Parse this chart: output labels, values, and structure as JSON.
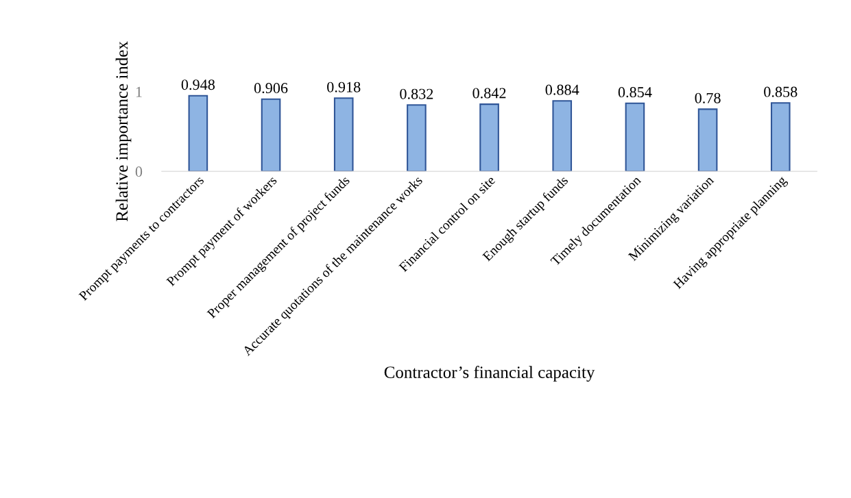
{
  "chart_data": {
    "type": "bar",
    "xlabel": "Contractor’s financial capacity",
    "ylabel": "Relative importance index",
    "categories": [
      "Prompt payments to contractors",
      "Prompt payment of workers",
      "Proper management of project funds",
      "Accurate quotations of the maintenance works",
      "Financial control on site",
      "Enough startup funds",
      "Timely documentation",
      "Minimizing variation",
      "Having appropriate planning"
    ],
    "values": [
      0.948,
      0.906,
      0.918,
      0.832,
      0.842,
      0.884,
      0.854,
      0.78,
      0.858
    ],
    "color": "#8eb4e3",
    "ylim": [
      0,
      1
    ],
    "yticks": [
      0,
      1
    ],
    "data_labels": true,
    "grid": false,
    "legend": false
  }
}
